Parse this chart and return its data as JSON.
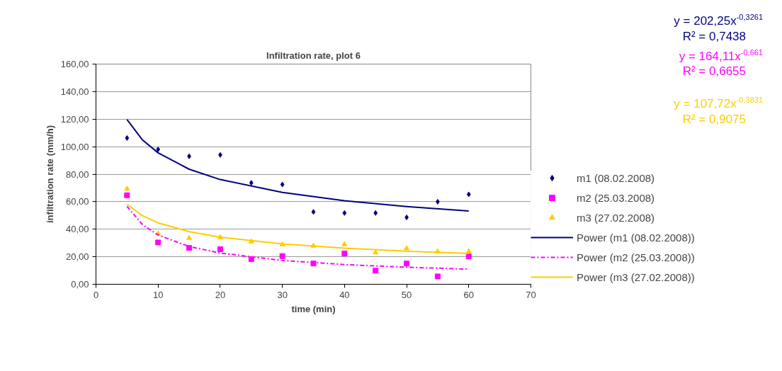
{
  "chart_data": {
    "type": "scatter",
    "title": "Infiltration rate, plot 6",
    "xlabel": "time (min)",
    "ylabel": "infiltration rate (mm/h)",
    "xlim": [
      0,
      70
    ],
    "xticks": [
      0,
      10,
      20,
      30,
      40,
      50,
      60,
      70
    ],
    "ylim": [
      0,
      160
    ],
    "yticks": [
      {
        "value": 0,
        "label": "0,00"
      },
      {
        "value": 20,
        "label": "20,00"
      },
      {
        "value": 40,
        "label": "40,00"
      },
      {
        "value": 60,
        "label": "60,00"
      },
      {
        "value": 80,
        "label": "80,00"
      },
      {
        "value": 100,
        "label": "100,00"
      },
      {
        "value": 120,
        "label": "120,00"
      },
      {
        "value": 140,
        "label": "140,00"
      },
      {
        "value": 160,
        "label": "160,00"
      }
    ],
    "grid": "y",
    "legend": "right",
    "series": [
      {
        "name": "m1 (08.02.2008)",
        "marker": "diamond",
        "color": "#000080",
        "x": [
          5,
          10,
          15,
          20,
          25,
          30,
          35,
          40,
          45,
          50,
          55,
          60
        ],
        "values": [
          106.3,
          98,
          93,
          94,
          73.7,
          72.5,
          52.6,
          51.8,
          51.8,
          48.6,
          60,
          65.3
        ]
      },
      {
        "name": "m2 (25.03.2008)",
        "marker": "square",
        "color": "#ff00ff",
        "x": [
          5,
          10,
          15,
          20,
          25,
          30,
          35,
          40,
          45,
          50,
          55,
          60
        ],
        "values": [
          64.7,
          30.4,
          26.4,
          25.5,
          18.3,
          20.5,
          15.1,
          22.4,
          9.9,
          15.1,
          5.7,
          20.2
        ]
      },
      {
        "name": "m3 (27.02.2008)",
        "marker": "triangle",
        "color": "#ffcc00",
        "x": [
          5,
          10,
          15,
          20,
          25,
          30,
          35,
          40,
          45,
          50,
          55,
          60
        ],
        "values": [
          69.3,
          36.8,
          33.6,
          34,
          31,
          28.8,
          27.9,
          29,
          23,
          26,
          23.8,
          23.8
        ]
      },
      {
        "name": "Power (m1 (08.02.2008))",
        "type": "line",
        "line_style": "solid",
        "color": "#000080",
        "x": [
          5,
          7.5,
          10,
          15,
          20,
          30,
          40,
          50,
          60
        ],
        "values": [
          119.7,
          104.8,
          95.5,
          83.6,
          76.1,
          66.7,
          60.7,
          56.5,
          53.2
        ]
      },
      {
        "name": "Power (m2 (25.03.2008))",
        "type": "line",
        "line_style": "dashed",
        "color": "#ff00ff",
        "x": [
          5,
          7.5,
          10,
          15,
          20,
          30,
          40,
          50,
          60
        ],
        "values": [
          56.6,
          43.3,
          35.8,
          27.4,
          22.7,
          17.3,
          14.3,
          12.4,
          11.0
        ]
      },
      {
        "name": "Power (m3 (27.02.2008))",
        "type": "line",
        "line_style": "solid",
        "color": "#ffcc00",
        "x": [
          5,
          7.5,
          10,
          15,
          20,
          30,
          40,
          50,
          60
        ],
        "values": [
          58.1,
          49.8,
          44.6,
          38.2,
          34.2,
          29.3,
          26.2,
          24.1,
          22.4
        ]
      }
    ],
    "annotations": [
      "y = 202,25x$^{-0,3261}$",
      "R² = 0,7438",
      "y = 164,11x$^{-0,661}$",
      "R² = 0,6655",
      "y = 107,72x$^{-0,3831}$",
      "R² = 0,9075"
    ]
  }
}
